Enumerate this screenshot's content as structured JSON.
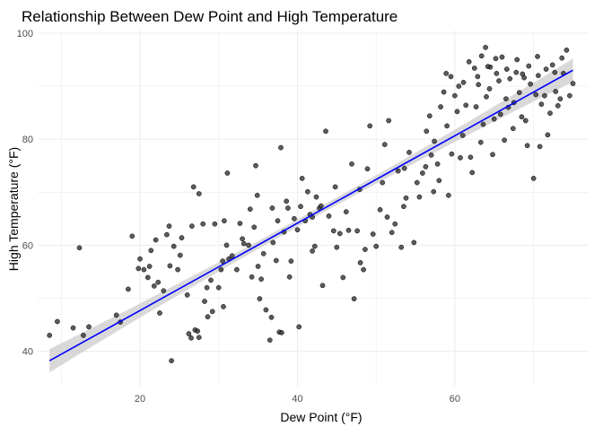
{
  "chart_data": {
    "type": "scatter",
    "title": "Relationship Between Dew Point and High Temperature",
    "xlabel": "Dew Point (°F)",
    "ylabel": "High Temperature (°F)",
    "xlim": [
      7,
      77
    ],
    "ylim": [
      33.5,
      100.5
    ],
    "xticks": [
      20,
      40,
      60
    ],
    "yticks": [
      40,
      60,
      80,
      100
    ],
    "xtick_labels": [
      "20",
      "40",
      "60"
    ],
    "ytick_labels": [
      "40",
      "60",
      "80",
      "100"
    ],
    "grid": true,
    "colors": {
      "points": "#333333",
      "trend_line": "#0000ff",
      "confidence_band": "#cccccc",
      "grid": "#ebebeb"
    },
    "trend": {
      "type": "linear",
      "x": [
        8.5,
        75
      ],
      "y": [
        38.2,
        93.0
      ],
      "band_halfwidth_ends": 2.2,
      "band_halfwidth_center": 0.7
    },
    "points": [
      [
        8.5,
        43.0
      ],
      [
        9.5,
        45.6
      ],
      [
        11.5,
        44.4
      ],
      [
        12.3,
        59.5
      ],
      [
        12.8,
        43.0
      ],
      [
        13.5,
        44.6
      ],
      [
        17.0,
        46.8
      ],
      [
        17.5,
        45.5
      ],
      [
        18.5,
        51.7
      ],
      [
        19.0,
        61.7
      ],
      [
        20.0,
        57.4
      ],
      [
        20.5,
        55.4
      ],
      [
        21.0,
        53.9
      ],
      [
        21.2,
        56.0
      ],
      [
        21.8,
        52.3
      ],
      [
        22.0,
        61.0
      ],
      [
        22.5,
        47.2
      ],
      [
        23.0,
        51.4
      ],
      [
        23.4,
        62.0
      ],
      [
        23.7,
        63.6
      ],
      [
        24.0,
        38.2
      ],
      [
        24.3,
        59.8
      ],
      [
        24.8,
        55.4
      ],
      [
        25.1,
        58.1
      ],
      [
        25.3,
        61.4
      ],
      [
        26.2,
        43.3
      ],
      [
        26.5,
        42.5
      ],
      [
        26.6,
        63.6
      ],
      [
        26.8,
        71.0
      ],
      [
        27.0,
        44.0
      ],
      [
        27.3,
        43.8
      ],
      [
        27.5,
        42.6
      ],
      [
        27.5,
        69.7
      ],
      [
        28.0,
        64.0
      ],
      [
        28.2,
        49.4
      ],
      [
        28.6,
        46.5
      ],
      [
        29.0,
        53.4
      ],
      [
        29.2,
        47.5
      ],
      [
        29.5,
        64.0
      ],
      [
        30.0,
        52.0
      ],
      [
        30.3,
        55.4
      ],
      [
        30.6,
        48.4
      ],
      [
        30.7,
        64.6
      ],
      [
        31.0,
        60.0
      ],
      [
        31.1,
        73.6
      ],
      [
        31.3,
        57.4
      ],
      [
        31.7,
        58.0
      ],
      [
        32.3,
        55.4
      ],
      [
        33.0,
        61.2
      ],
      [
        33.2,
        60.3
      ],
      [
        33.8,
        60.0
      ],
      [
        34.2,
        54.0
      ],
      [
        34.5,
        63.4
      ],
      [
        34.7,
        75.0
      ],
      [
        34.9,
        69.4
      ],
      [
        35.0,
        56.0
      ],
      [
        35.2,
        49.9
      ],
      [
        35.4,
        53.6
      ],
      [
        36.0,
        47.8
      ],
      [
        36.5,
        42.1
      ],
      [
        36.7,
        46.4
      ],
      [
        36.9,
        60.5
      ],
      [
        37.3,
        57.1
      ],
      [
        37.5,
        64.6
      ],
      [
        37.7,
        43.6
      ],
      [
        37.9,
        78.4
      ],
      [
        38.0,
        43.5
      ],
      [
        38.3,
        62.5
      ],
      [
        38.6,
        68.3
      ],
      [
        38.8,
        67.0
      ],
      [
        39.2,
        57.0
      ],
      [
        39.6,
        65.0
      ],
      [
        40.2,
        44.6
      ],
      [
        40.4,
        67.3
      ],
      [
        40.6,
        72.6
      ],
      [
        41.0,
        64.6
      ],
      [
        41.3,
        70.1
      ],
      [
        41.6,
        65.8
      ],
      [
        41.9,
        65.3
      ],
      [
        42.2,
        59.8
      ],
      [
        42.4,
        69.1
      ],
      [
        42.8,
        67.0
      ],
      [
        43.2,
        52.4
      ],
      [
        43.6,
        81.5
      ],
      [
        44.0,
        65.5
      ],
      [
        44.6,
        62.7
      ],
      [
        45.0,
        59.6
      ],
      [
        45.4,
        62.2
      ],
      [
        45.8,
        53.9
      ],
      [
        46.5,
        62.8
      ],
      [
        46.9,
        75.3
      ],
      [
        47.2,
        49.9
      ],
      [
        47.6,
        62.7
      ],
      [
        48.0,
        56.7
      ],
      [
        48.4,
        55.4
      ],
      [
        48.9,
        74.4
      ],
      [
        49.2,
        82.5
      ],
      [
        49.6,
        62.1
      ],
      [
        50.0,
        59.8
      ],
      [
        50.5,
        66.7
      ],
      [
        51.1,
        79.0
      ],
      [
        51.6,
        83.5
      ],
      [
        52.4,
        64.0
      ],
      [
        52.8,
        74.0
      ],
      [
        53.2,
        59.6
      ],
      [
        53.6,
        74.5
      ],
      [
        54.2,
        77.5
      ],
      [
        54.8,
        60.5
      ],
      [
        55.5,
        69.1
      ],
      [
        55.9,
        73.6
      ],
      [
        56.4,
        81.5
      ],
      [
        56.8,
        84.4
      ],
      [
        57.3,
        70.1
      ],
      [
        57.8,
        75.3
      ],
      [
        58.2,
        86.1
      ],
      [
        58.6,
        88.9
      ],
      [
        59.0,
        82.5
      ],
      [
        59.5,
        91.8
      ],
      [
        60.0,
        88.2
      ],
      [
        60.5,
        90.0
      ],
      [
        61.0,
        80.7
      ],
      [
        61.4,
        86.4
      ],
      [
        62.0,
        76.6
      ],
      [
        62.5,
        93.4
      ],
      [
        63.0,
        90.3
      ],
      [
        63.4,
        95.7
      ],
      [
        63.6,
        82.8
      ],
      [
        64.0,
        88.0
      ],
      [
        64.5,
        93.6
      ],
      [
        65.0,
        83.8
      ],
      [
        65.3,
        92.4
      ],
      [
        65.6,
        91.0
      ],
      [
        66.0,
        95.5
      ],
      [
        66.5,
        87.6
      ],
      [
        67.0,
        91.4
      ],
      [
        67.4,
        82.0
      ],
      [
        67.8,
        92.6
      ],
      [
        68.2,
        88.8
      ],
      [
        68.8,
        91.6
      ],
      [
        69.2,
        78.8
      ],
      [
        69.6,
        90.4
      ],
      [
        70.0,
        72.6
      ],
      [
        70.6,
        92.0
      ],
      [
        71.0,
        86.6
      ],
      [
        71.4,
        88.2
      ],
      [
        71.8,
        80.8
      ],
      [
        72.4,
        94.0
      ],
      [
        72.8,
        89.0
      ],
      [
        73.4,
        87.6
      ],
      [
        73.8,
        92.4
      ],
      [
        74.2,
        96.8
      ],
      [
        74.6,
        88.2
      ],
      [
        75.0,
        90.5
      ],
      [
        60.3,
        85.2
      ],
      [
        62.7,
        86.1
      ],
      [
        64.4,
        89.5
      ],
      [
        66.8,
        86.0
      ],
      [
        68.5,
        84.2
      ],
      [
        70.3,
        88.4
      ],
      [
        58.9,
        92.4
      ],
      [
        61.8,
        94.6
      ],
      [
        63.9,
        97.3
      ],
      [
        59.6,
        77.2
      ],
      [
        57.4,
        79.6
      ],
      [
        55.2,
        71.8
      ],
      [
        53.5,
        67.3
      ],
      [
        52.0,
        62.4
      ],
      [
        50.8,
        71.8
      ],
      [
        47.9,
        70.5
      ],
      [
        46.2,
        66.3
      ],
      [
        44.8,
        71.0
      ],
      [
        43.0,
        67.4
      ],
      [
        41.9,
        58.9
      ],
      [
        40.0,
        62.9
      ],
      [
        39.0,
        54.0
      ],
      [
        36.8,
        67.0
      ],
      [
        35.7,
        58.4
      ],
      [
        34.0,
        66.8
      ],
      [
        32.7,
        64.1
      ],
      [
        30.5,
        57.0
      ],
      [
        28.5,
        52.0
      ],
      [
        26.0,
        50.6
      ],
      [
        23.8,
        56.1
      ],
      [
        22.3,
        53.0
      ],
      [
        21.4,
        59.0
      ],
      [
        19.8,
        55.6
      ],
      [
        48.6,
        59.2
      ],
      [
        51.4,
        65.3
      ],
      [
        53.8,
        68.9
      ],
      [
        56.3,
        74.8
      ],
      [
        57.0,
        77.0
      ],
      [
        58.0,
        72.2
      ],
      [
        59.2,
        69.4
      ],
      [
        60.7,
        76.5
      ],
      [
        62.2,
        73.7
      ],
      [
        63.3,
        79.4
      ],
      [
        64.8,
        77.1
      ],
      [
        65.8,
        84.7
      ],
      [
        66.3,
        79.8
      ],
      [
        67.5,
        86.9
      ],
      [
        69.0,
        83.5
      ],
      [
        70.8,
        78.6
      ],
      [
        72.1,
        84.9
      ],
      [
        73.1,
        86.3
      ],
      [
        61.1,
        90.7
      ],
      [
        62.9,
        91.8
      ],
      [
        64.2,
        93.7
      ],
      [
        65.2,
        95.2
      ],
      [
        66.6,
        93.2
      ],
      [
        67.9,
        95.0
      ],
      [
        69.4,
        93.8
      ],
      [
        70.5,
        95.6
      ],
      [
        71.6,
        93.2
      ],
      [
        72.7,
        92.6
      ],
      [
        73.6,
        95.3
      ],
      [
        68.6,
        92.3
      ]
    ]
  }
}
